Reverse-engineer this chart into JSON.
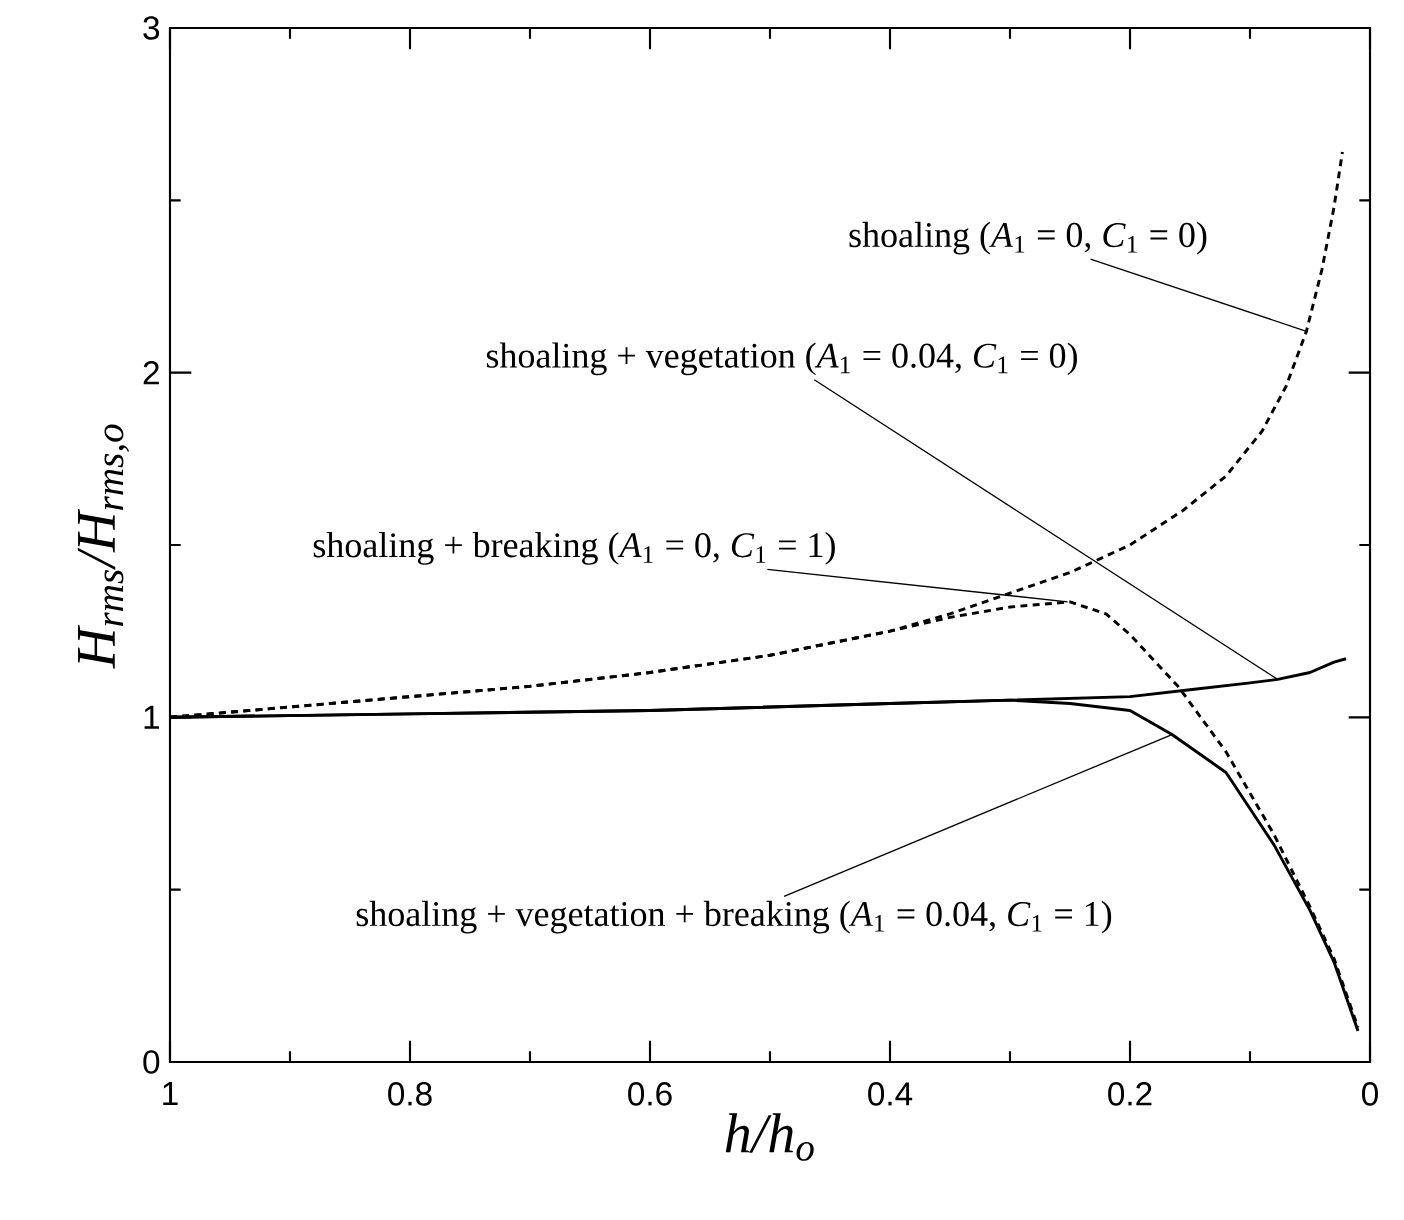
{
  "chart_data": {
    "type": "line",
    "xlabel": "h/h$_{o}$",
    "ylabel": "H$_{rms}$/H$_{rms,o}$",
    "xlim": [
      1,
      0
    ],
    "ylim": [
      0,
      3
    ],
    "xticks": [
      1,
      {
        "value": 0.9,
        "label": null
      },
      0.8,
      {
        "value": 0.7,
        "label": null
      },
      0.6,
      {
        "value": 0.5,
        "label": null
      },
      0.4,
      {
        "value": 0.3,
        "label": null
      },
      0.2,
      {
        "value": 0.1,
        "label": null
      },
      0
    ],
    "yticks": [
      0,
      {
        "value": 0.5,
        "label": null
      },
      1,
      {
        "value": 1.5,
        "label": null
      },
      2,
      {
        "value": 2.5,
        "label": null
      },
      3
    ],
    "grid": false,
    "marker": "none",
    "series": [
      {
        "color": "#000000",
        "line_style": "dashed",
        "x": [
          1,
          0.9,
          0.8,
          0.7,
          0.6,
          0.5,
          0.4,
          0.35,
          0.3,
          0.25,
          0.2,
          0.156,
          0.12,
          0.09,
          0.07,
          0.053,
          0.04,
          0.03,
          0.023
        ],
        "values": [
          1,
          1.03,
          1.06,
          1.09,
          1.13,
          1.18,
          1.25,
          1.3,
          1.36,
          1.42,
          1.5,
          1.6,
          1.7,
          1.83,
          1.96,
          2.12,
          2.3,
          2.48,
          2.64
        ]
      },
      {
        "color": "#000000",
        "line_style": "solid",
        "x": [
          1,
          0.8,
          0.6,
          0.4,
          0.3,
          0.2,
          0.15,
          0.1,
          0.077,
          0.05,
          0.03,
          0.02
        ],
        "values": [
          1,
          1.01,
          1.02,
          1.04,
          1.05,
          1.06,
          1.08,
          1.1,
          1.11,
          1.13,
          1.16,
          1.17
        ]
      },
      {
        "color": "#000000",
        "line_style": "dashed",
        "x": [
          1,
          0.9,
          0.8,
          0.7,
          0.6,
          0.5,
          0.4,
          0.35,
          0.3,
          0.25,
          0.22,
          0.2,
          0.16,
          0.12,
          0.08,
          0.05,
          0.03,
          0.01
        ],
        "values": [
          1,
          1.03,
          1.06,
          1.09,
          1.13,
          1.18,
          1.25,
          1.29,
          1.32,
          1.335,
          1.3,
          1.24,
          1.09,
          0.9,
          0.66,
          0.45,
          0.3,
          0.1
        ]
      },
      {
        "color": "#000000",
        "line_style": "solid",
        "x": [
          1,
          0.8,
          0.6,
          0.4,
          0.3,
          0.25,
          0.2,
          0.165,
          0.12,
          0.08,
          0.05,
          0.03,
          0.01
        ],
        "values": [
          1,
          1.01,
          1.02,
          1.04,
          1.05,
          1.04,
          1.02,
          0.95,
          0.84,
          0.63,
          0.44,
          0.29,
          0.09
        ]
      }
    ],
    "annotations": [
      {
        "text": "shoaling (*A*$_{1}$ = 0, *C*$_{1}$ = 0)",
        "x": 0.053,
        "y": 2.12
      },
      {
        "text": "shoaling + vegetation (*A*$_{1}$ = 0.04, *C*$_{1}$ = 0)",
        "x": 0.077,
        "y": 1.11
      },
      {
        "text": "shoaling + breaking (*A*$_{1}$ = 0, *C*$_{1}$ = 1)",
        "x": 0.252,
        "y": 1.335
      },
      {
        "text": "shoaling + vegetation + breaking (*A*$_{1}$ = 0.04, *C*$_{1}$ = 1)",
        "x": 0.165,
        "y": 0.95
      }
    ]
  }
}
